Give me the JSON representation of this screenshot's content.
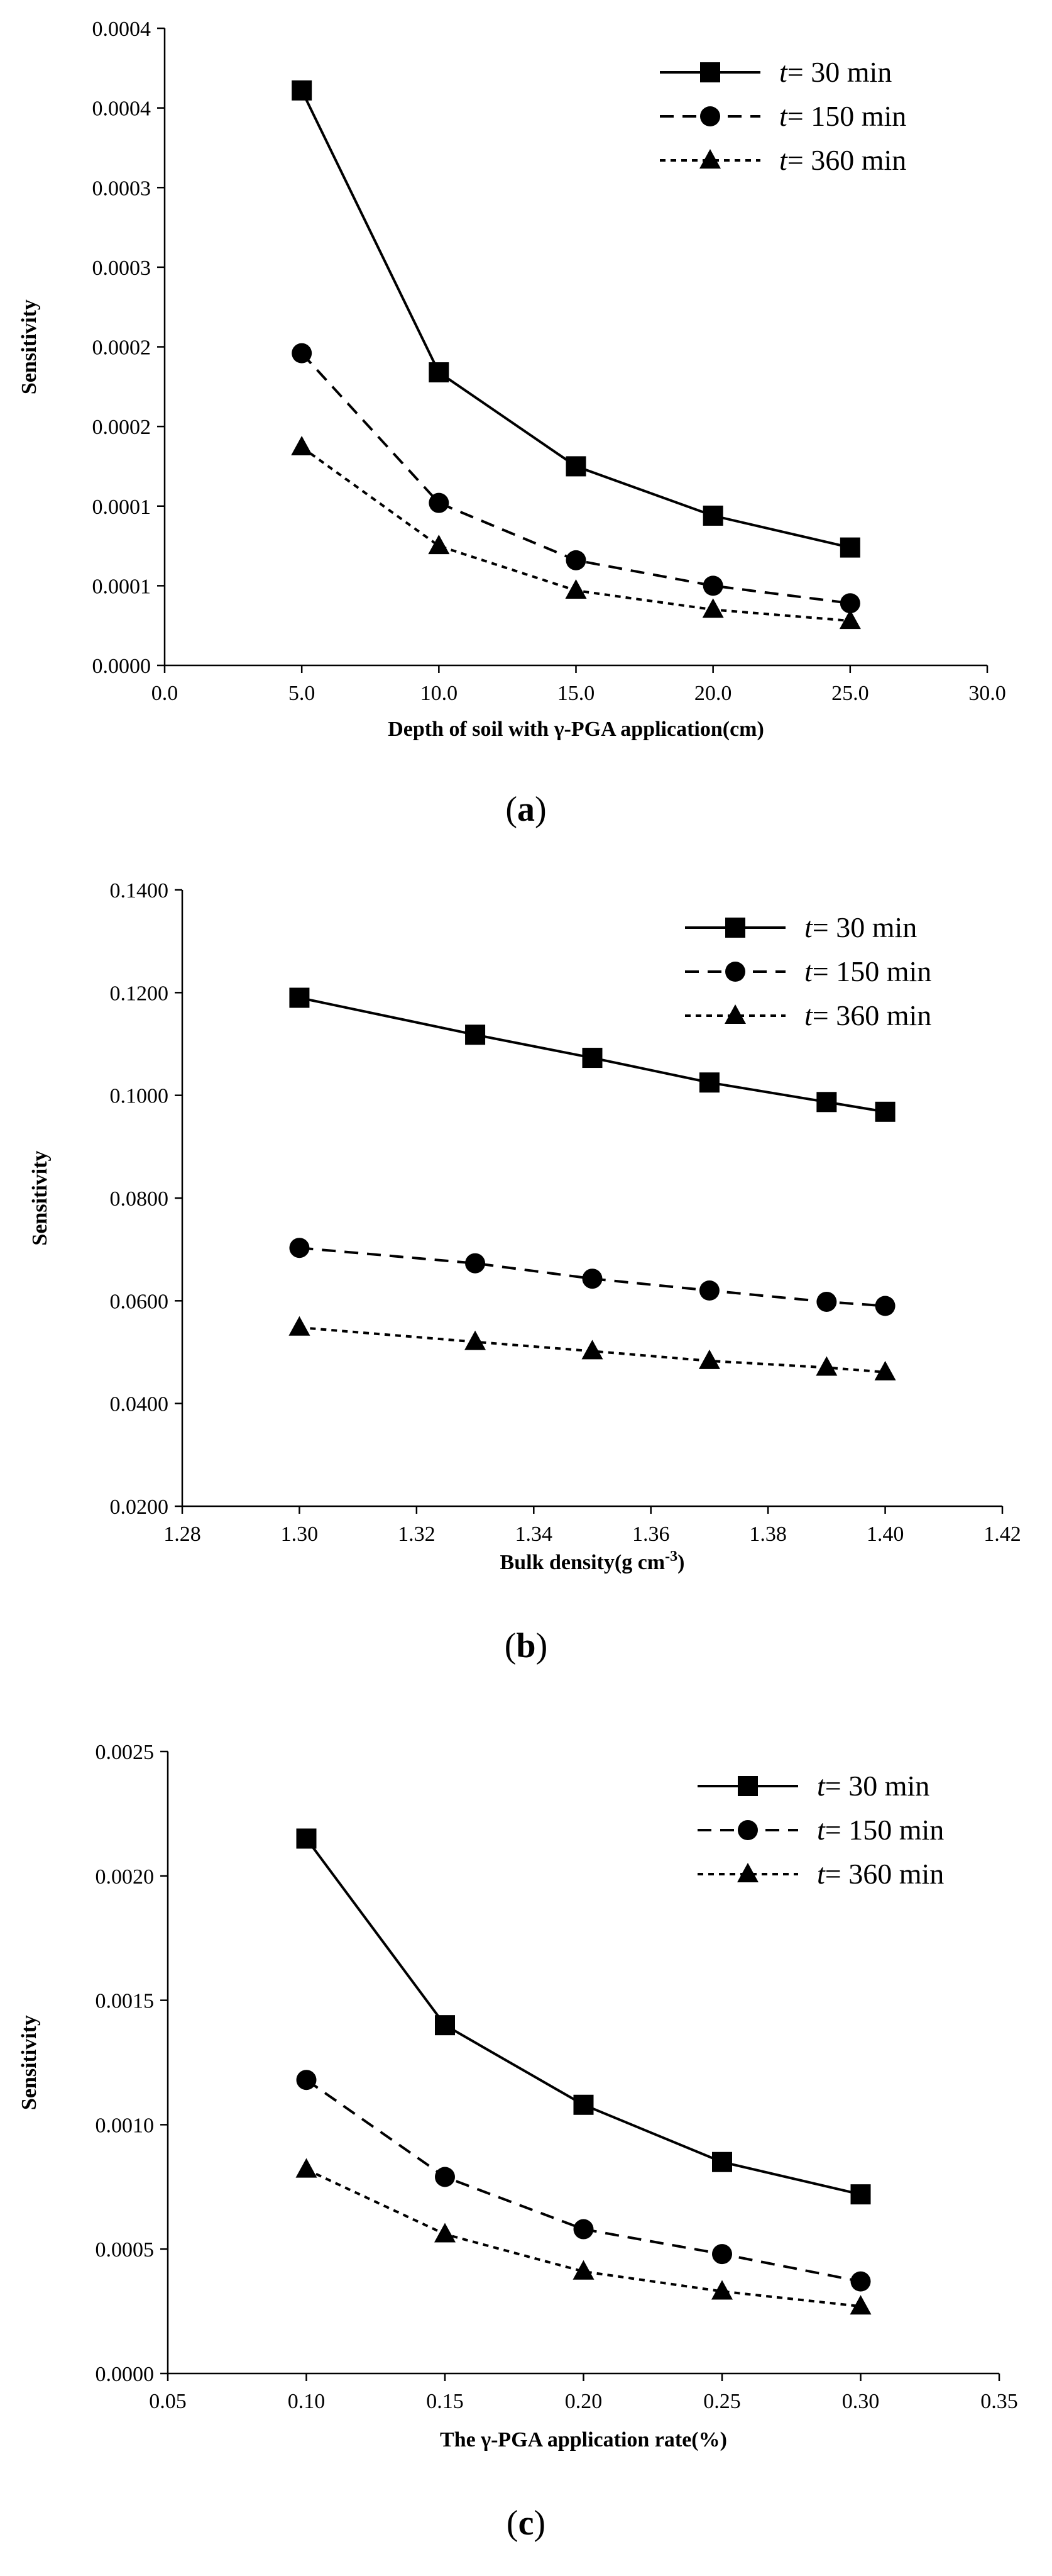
{
  "chart_data": [
    {
      "type": "line",
      "panel_label": "a",
      "xlabel": "Depth of soil with γ-PGA application(cm)",
      "ylabel": "Sensitivity",
      "xlim": [
        0,
        30
      ],
      "ylim": [
        0,
        0.0004
      ],
      "x_ticks": [
        0,
        5,
        10,
        15,
        20,
        25,
        30
      ],
      "x_tick_labels": [
        "0.0",
        "5.0",
        "10.0",
        "15.0",
        "20.0",
        "25.0",
        "30.0"
      ],
      "y_ticks": [
        0,
        5e-05,
        0.0001,
        0.00015,
        0.0002,
        0.00025,
        0.0003,
        0.00035,
        0.0004
      ],
      "y_tick_labels": [
        "0.0000",
        "0.0001",
        "0.0001",
        "0.0002",
        "0.0002",
        "0.0003",
        "0.0003",
        "0.0004",
        "0.0004"
      ],
      "legend_position": "top-right",
      "x": [
        5,
        10,
        15,
        20,
        25
      ],
      "series": [
        {
          "name": "t = 30 min",
          "legend_italic": "t",
          "legend_rest": "= 30 min",
          "marker": "square",
          "line": "solid",
          "values": [
            0.000361,
            0.000184,
            0.000125,
            9.4e-05,
            7.4e-05
          ]
        },
        {
          "name": "t = 150 min",
          "legend_italic": "t",
          "legend_rest": "= 150 min",
          "marker": "circle",
          "line": "dashed",
          "values": [
            0.000196,
            0.000102,
            6.6e-05,
            5e-05,
            3.9e-05
          ]
        },
        {
          "name": "t = 360 min",
          "legend_italic": "t",
          "legend_rest": "= 360 min",
          "marker": "triangle",
          "line": "dotted",
          "values": [
            0.000137,
            7.5e-05,
            4.7e-05,
            3.5e-05,
            2.8e-05
          ]
        }
      ]
    },
    {
      "type": "line",
      "panel_label": "b",
      "xlabel": "Bulk density(g cm",
      "xlabel_sup": "-3",
      "xlabel_end": ")",
      "ylabel": "Sensitivity",
      "xlim": [
        1.28,
        1.42
      ],
      "ylim": [
        0.02,
        0.14
      ],
      "x_ticks": [
        1.28,
        1.3,
        1.32,
        1.34,
        1.36,
        1.38,
        1.4,
        1.42
      ],
      "x_tick_labels": [
        "1.28",
        "1.30",
        "1.32",
        "1.34",
        "1.36",
        "1.38",
        "1.40",
        "1.42"
      ],
      "y_ticks": [
        0.02,
        0.04,
        0.06,
        0.08,
        0.1,
        0.12,
        0.14
      ],
      "y_tick_labels": [
        "0.0200",
        "0.0400",
        "0.0600",
        "0.0800",
        "0.1000",
        "0.1200",
        "0.1400"
      ],
      "legend_position": "top-right",
      "x": [
        1.3,
        1.33,
        1.35,
        1.37,
        1.39,
        1.4
      ],
      "series": [
        {
          "name": "t = 30 min",
          "legend_italic": "t",
          "legend_rest": "= 30 min",
          "marker": "square",
          "line": "solid",
          "values": [
            0.119,
            0.1118,
            0.1073,
            0.1025,
            0.0987,
            0.0968
          ]
        },
        {
          "name": "t = 150 min",
          "legend_italic": "t",
          "legend_rest": "= 150 min",
          "marker": "circle",
          "line": "dashed",
          "values": [
            0.0703,
            0.0673,
            0.0643,
            0.062,
            0.0598,
            0.059
          ]
        },
        {
          "name": "t = 360 min",
          "legend_italic": "t",
          "legend_rest": "= 360 min",
          "marker": "triangle",
          "line": "dotted",
          "values": [
            0.0548,
            0.052,
            0.0502,
            0.0483,
            0.047,
            0.0461
          ]
        }
      ]
    },
    {
      "type": "line",
      "panel_label": "c",
      "xlabel": "The γ-PGA application rate(%)",
      "ylabel": "Sensitivity",
      "xlim": [
        0.05,
        0.35
      ],
      "ylim": [
        0,
        0.0025
      ],
      "x_ticks": [
        0.05,
        0.1,
        0.15,
        0.2,
        0.25,
        0.3,
        0.35
      ],
      "x_tick_labels": [
        "0.05",
        "0.10",
        "0.15",
        "0.20",
        "0.25",
        "0.30",
        "0.35"
      ],
      "y_ticks": [
        0,
        0.0005,
        0.001,
        0.0015,
        0.002,
        0.0025
      ],
      "y_tick_labels": [
        "0.0000",
        "0.0005",
        "0.0010",
        "0.0015",
        "0.0020",
        "0.0025"
      ],
      "legend_position": "top-right",
      "x": [
        0.1,
        0.15,
        0.2,
        0.25,
        0.3
      ],
      "series": [
        {
          "name": "t = 30 min",
          "legend_italic": "t",
          "legend_rest": "= 30 min",
          "marker": "square",
          "line": "solid",
          "values": [
            0.00215,
            0.0014,
            0.00108,
            0.00085,
            0.00072
          ]
        },
        {
          "name": "t = 150 min",
          "legend_italic": "t",
          "legend_rest": "= 150 min",
          "marker": "circle",
          "line": "dashed",
          "values": [
            0.00118,
            0.00079,
            0.00058,
            0.00048,
            0.00037
          ]
        },
        {
          "name": "t = 360 min",
          "legend_italic": "t",
          "legend_rest": "= 360 min",
          "marker": "triangle",
          "line": "dotted",
          "values": [
            0.00082,
            0.00056,
            0.00041,
            0.00033,
            0.00027
          ]
        }
      ]
    }
  ]
}
